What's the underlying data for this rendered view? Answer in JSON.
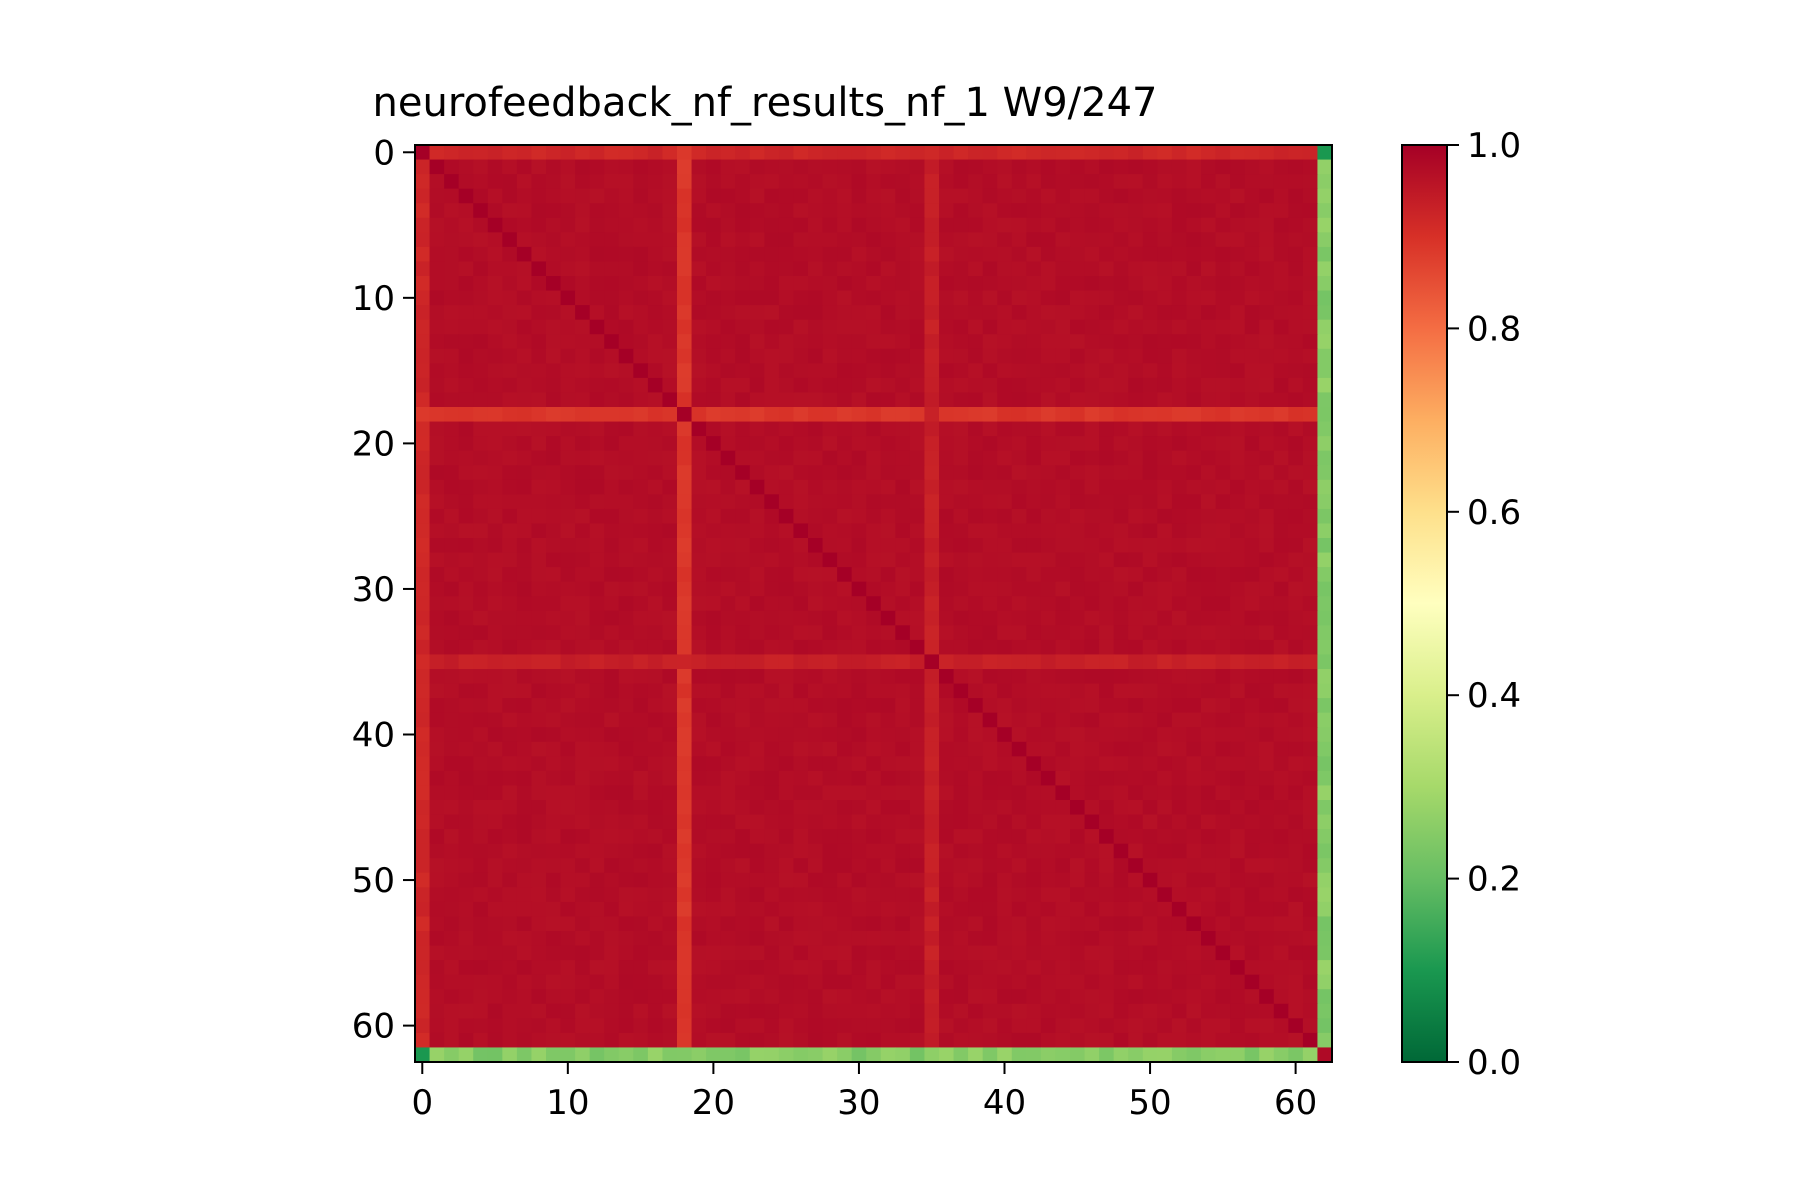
{
  "chart_data": {
    "type": "heatmap",
    "title": "neurofeedback_nf_results_nf_1 W9/247",
    "xlabel": "",
    "ylabel": "",
    "n_rows": 63,
    "n_cols": 63,
    "x_ticks": [
      0,
      10,
      20,
      30,
      40,
      50,
      60
    ],
    "y_ticks": [
      0,
      10,
      20,
      30,
      40,
      50,
      60
    ],
    "colormap": "RdYlGn_r",
    "colorbar": {
      "vmin": 0.0,
      "vmax": 1.0,
      "ticks": [
        "0.0",
        "0.2",
        "0.4",
        "0.6",
        "0.8",
        "1.0"
      ]
    },
    "base_value": 0.98,
    "edge_values": {
      "col_0": 0.91,
      "row_0": 0.91
    },
    "outlier_index": 62,
    "outlier_cross_value": 0.25,
    "outlier_corner_value": 0.1,
    "weaker_lines": [
      {
        "index": 18,
        "value": 0.9
      },
      {
        "index": 35,
        "value": 0.945
      }
    ],
    "grid": false,
    "legend": "colorbar right"
  }
}
